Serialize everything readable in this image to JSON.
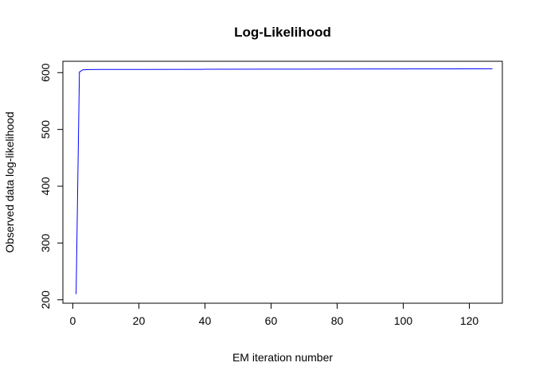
{
  "chart_data": {
    "type": "line",
    "title": "Log-Likelihood",
    "xlabel": "EM iteration number",
    "ylabel": "Observed data log-likelihood",
    "xlim": [
      -3,
      130
    ],
    "ylim": [
      194,
      620
    ],
    "xticks": [
      0,
      20,
      40,
      60,
      80,
      100,
      120
    ],
    "yticks": [
      200,
      300,
      400,
      500,
      600
    ],
    "grid": false,
    "legend": "none",
    "series": [
      {
        "color": "#0000ff",
        "x": [
          1,
          2,
          3,
          5,
          10,
          20,
          40,
          60,
          80,
          100,
          120,
          127
        ],
        "y": [
          210,
          601,
          605,
          605.5,
          605.6,
          605.7,
          605.9,
          606.1,
          606.3,
          606.5,
          606.7,
          606.8
        ]
      }
    ]
  }
}
